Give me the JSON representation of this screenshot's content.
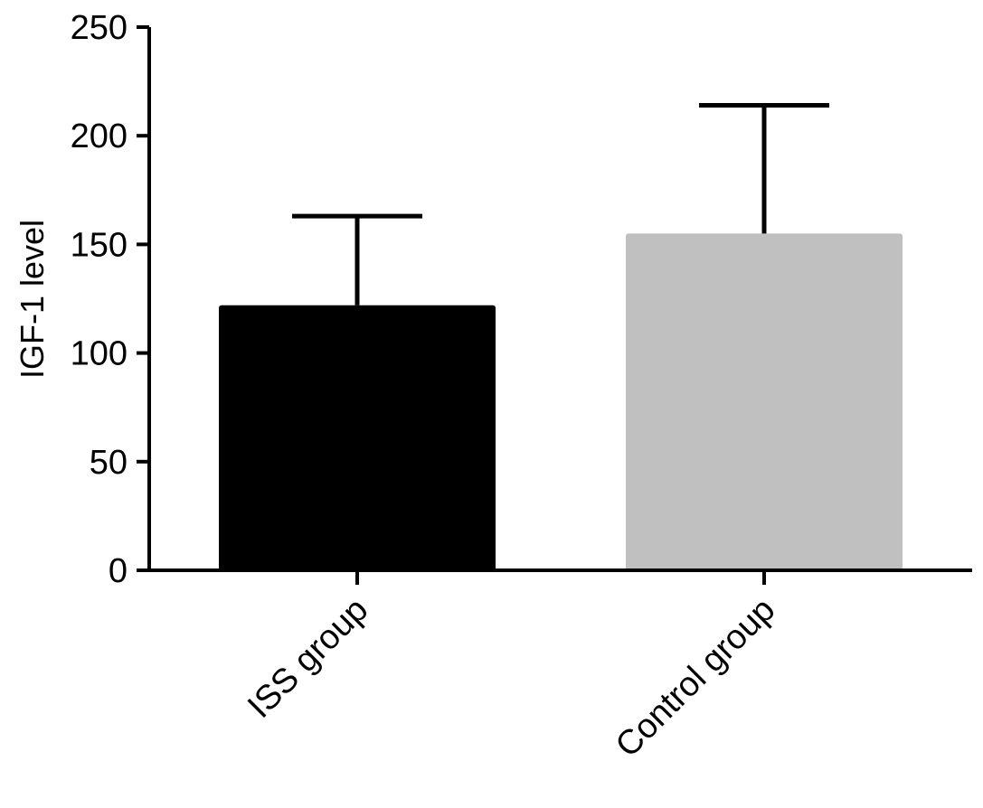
{
  "chart_data": {
    "type": "bar",
    "title": "",
    "xlabel": "",
    "ylabel": "IGF-1 level",
    "ylim": [
      0,
      250
    ],
    "yticks": [
      0,
      50,
      100,
      150,
      200,
      250
    ],
    "categories": [
      "ISS group",
      "Control group"
    ],
    "values": [
      122,
      155
    ],
    "errors": [
      41,
      59
    ],
    "colors": [
      "#000000",
      "#c0c0c0"
    ],
    "grid": false,
    "legend": "none"
  }
}
